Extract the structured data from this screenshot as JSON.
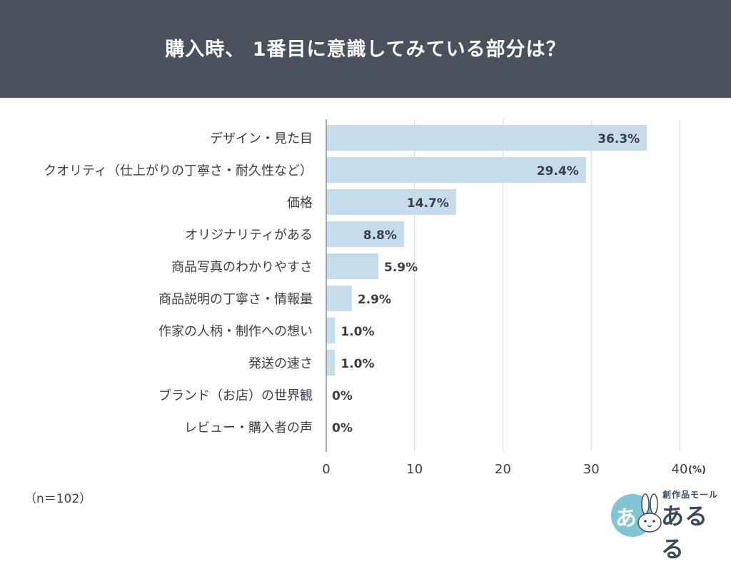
{
  "header": {
    "title": "購入時、 1番目に意識してみている部分は？"
  },
  "chart_data": {
    "type": "bar",
    "orientation": "horizontal",
    "categories": [
      "デザイン・見た目",
      "クオリティ（仕上がりの丁寧さ・耐久性など）",
      "価格",
      "オリジナリティがある",
      "商品写真のわかりやすさ",
      "商品説明の丁寧さ・情報量",
      "作家の人柄・制作への想い",
      "発送の速さ",
      "ブランド（お店）の世界観",
      "レビュー・購入者の声"
    ],
    "values": [
      36.3,
      29.4,
      14.7,
      8.8,
      5.9,
      2.9,
      1.0,
      1.0,
      0,
      0
    ],
    "value_labels": [
      "36.3%",
      "29.4%",
      "14.7%",
      "8.8%",
      "5.9%",
      "2.9%",
      "1.0%",
      "1.0%",
      "0%",
      "0%"
    ],
    "xlim": [
      0,
      40
    ],
    "x_ticks": [
      "0",
      "10",
      "20",
      "30",
      "40"
    ],
    "x_unit": "(%)",
    "grid": true,
    "bar_color": "#c6dcea",
    "grid_color": "#d6d8dc"
  },
  "footer": {
    "sample_size": "（n＝102）"
  },
  "logo": {
    "tagline": "創作品モール",
    "name": "あるる",
    "badge": "あ",
    "accent": "#7fc6d2"
  }
}
